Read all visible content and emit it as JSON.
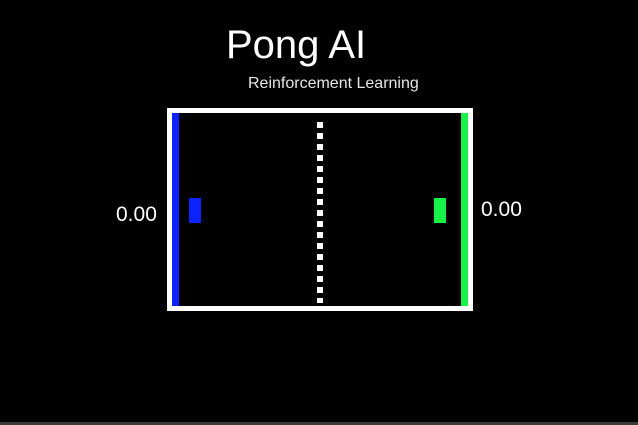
{
  "header": {
    "title": "Pong AI",
    "subtitle": "Reinforcement Learning"
  },
  "scores": {
    "left": "0.00",
    "right": "0.00"
  },
  "colors": {
    "background": "#000000",
    "field_border": "#ffffff",
    "left_player": "#0b24ff",
    "right_player": "#18f248",
    "net": "#ffffff"
  }
}
